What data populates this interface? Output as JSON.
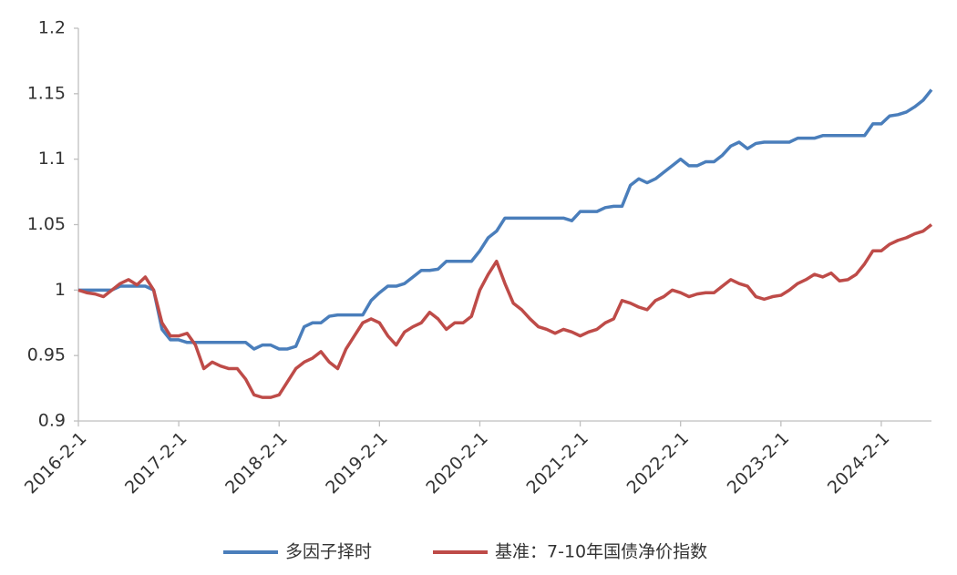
{
  "chart_data": {
    "type": "line",
    "x": [
      "2016-2-1",
      "2016-3-1",
      "2016-4-1",
      "2016-5-1",
      "2016-6-1",
      "2016-7-1",
      "2016-8-1",
      "2016-9-1",
      "2016-10-1",
      "2016-11-1",
      "2016-12-1",
      "2017-1-1",
      "2017-2-1",
      "2017-3-1",
      "2017-4-1",
      "2017-5-1",
      "2017-6-1",
      "2017-7-1",
      "2017-8-1",
      "2017-9-1",
      "2017-10-1",
      "2017-11-1",
      "2017-12-1",
      "2018-1-1",
      "2018-2-1",
      "2018-3-1",
      "2018-4-1",
      "2018-5-1",
      "2018-6-1",
      "2018-7-1",
      "2018-8-1",
      "2018-9-1",
      "2018-10-1",
      "2018-11-1",
      "2018-12-1",
      "2019-1-1",
      "2019-2-1",
      "2019-3-1",
      "2019-4-1",
      "2019-5-1",
      "2019-6-1",
      "2019-7-1",
      "2019-8-1",
      "2019-9-1",
      "2019-10-1",
      "2019-11-1",
      "2019-12-1",
      "2020-1-1",
      "2020-2-1",
      "2020-3-1",
      "2020-4-1",
      "2020-5-1",
      "2020-6-1",
      "2020-7-1",
      "2020-8-1",
      "2020-9-1",
      "2020-10-1",
      "2020-11-1",
      "2020-12-1",
      "2021-1-1",
      "2021-2-1",
      "2021-3-1",
      "2021-4-1",
      "2021-5-1",
      "2021-6-1",
      "2021-7-1",
      "2021-8-1",
      "2021-9-1",
      "2021-10-1",
      "2021-11-1",
      "2021-12-1",
      "2022-1-1",
      "2022-2-1",
      "2022-3-1",
      "2022-4-1",
      "2022-5-1",
      "2022-6-1",
      "2022-7-1",
      "2022-8-1",
      "2022-9-1",
      "2022-10-1",
      "2022-11-1",
      "2022-12-1",
      "2023-1-1",
      "2023-2-1",
      "2023-3-1",
      "2023-4-1",
      "2023-5-1",
      "2023-6-1",
      "2023-7-1",
      "2023-8-1",
      "2023-9-1",
      "2023-10-1",
      "2023-11-1",
      "2023-12-1",
      "2024-1-1",
      "2024-2-1",
      "2024-3-1",
      "2024-4-1",
      "2024-5-1",
      "2024-6-1",
      "2024-7-1",
      "2024-8-1"
    ],
    "series": [
      {
        "name": "多因子择时",
        "color": "#4a7ebb",
        "values": [
          1.0,
          1.0,
          1.0,
          1.0,
          1.0,
          1.003,
          1.003,
          1.003,
          1.003,
          1.0,
          0.97,
          0.962,
          0.962,
          0.96,
          0.96,
          0.96,
          0.96,
          0.96,
          0.96,
          0.96,
          0.96,
          0.955,
          0.958,
          0.958,
          0.955,
          0.955,
          0.957,
          0.972,
          0.975,
          0.975,
          0.98,
          0.981,
          0.981,
          0.981,
          0.981,
          0.992,
          0.998,
          1.003,
          1.003,
          1.005,
          1.01,
          1.015,
          1.015,
          1.016,
          1.022,
          1.022,
          1.022,
          1.022,
          1.03,
          1.04,
          1.045,
          1.055,
          1.055,
          1.055,
          1.055,
          1.055,
          1.055,
          1.055,
          1.055,
          1.053,
          1.06,
          1.06,
          1.06,
          1.063,
          1.064,
          1.064,
          1.08,
          1.085,
          1.082,
          1.085,
          1.09,
          1.095,
          1.1,
          1.095,
          1.095,
          1.098,
          1.098,
          1.103,
          1.11,
          1.113,
          1.108,
          1.112,
          1.113,
          1.113,
          1.113,
          1.113,
          1.116,
          1.116,
          1.116,
          1.118,
          1.118,
          1.118,
          1.118,
          1.118,
          1.118,
          1.127,
          1.127,
          1.133,
          1.134,
          1.136,
          1.14,
          1.145,
          1.153
        ]
      },
      {
        "name": "基准：7-10年国债净价指数",
        "color": "#be4b48",
        "values": [
          1.0,
          0.998,
          0.997,
          0.995,
          1.0,
          1.005,
          1.008,
          1.004,
          1.01,
          1.0,
          0.975,
          0.965,
          0.965,
          0.967,
          0.958,
          0.94,
          0.945,
          0.942,
          0.94,
          0.94,
          0.932,
          0.92,
          0.918,
          0.918,
          0.92,
          0.93,
          0.94,
          0.945,
          0.948,
          0.953,
          0.945,
          0.94,
          0.955,
          0.965,
          0.975,
          0.978,
          0.975,
          0.965,
          0.958,
          0.968,
          0.972,
          0.975,
          0.983,
          0.978,
          0.97,
          0.975,
          0.975,
          0.98,
          1.0,
          1.012,
          1.022,
          1.005,
          0.99,
          0.985,
          0.978,
          0.972,
          0.97,
          0.967,
          0.97,
          0.968,
          0.965,
          0.968,
          0.97,
          0.975,
          0.978,
          0.992,
          0.99,
          0.987,
          0.985,
          0.992,
          0.995,
          1.0,
          0.998,
          0.995,
          0.997,
          0.998,
          0.998,
          1.003,
          1.008,
          1.005,
          1.003,
          0.995,
          0.993,
          0.995,
          0.996,
          1.0,
          1.005,
          1.008,
          1.012,
          1.01,
          1.013,
          1.007,
          1.008,
          1.012,
          1.02,
          1.03,
          1.03,
          1.035,
          1.038,
          1.04,
          1.043,
          1.045,
          1.05
        ]
      }
    ],
    "xlim": [
      "2016-2-1",
      "2024-8-1"
    ],
    "xticks": [
      "2016-2-1",
      "2017-2-1",
      "2018-2-1",
      "2019-2-1",
      "2020-2-1",
      "2021-2-1",
      "2022-2-1",
      "2023-2-1",
      "2024-2-1"
    ],
    "ylim": [
      0.9,
      1.2
    ],
    "yticks": [
      0.9,
      0.95,
      1,
      1.05,
      1.1,
      1.15,
      1.2
    ],
    "grid": false,
    "legend": "bottom"
  }
}
